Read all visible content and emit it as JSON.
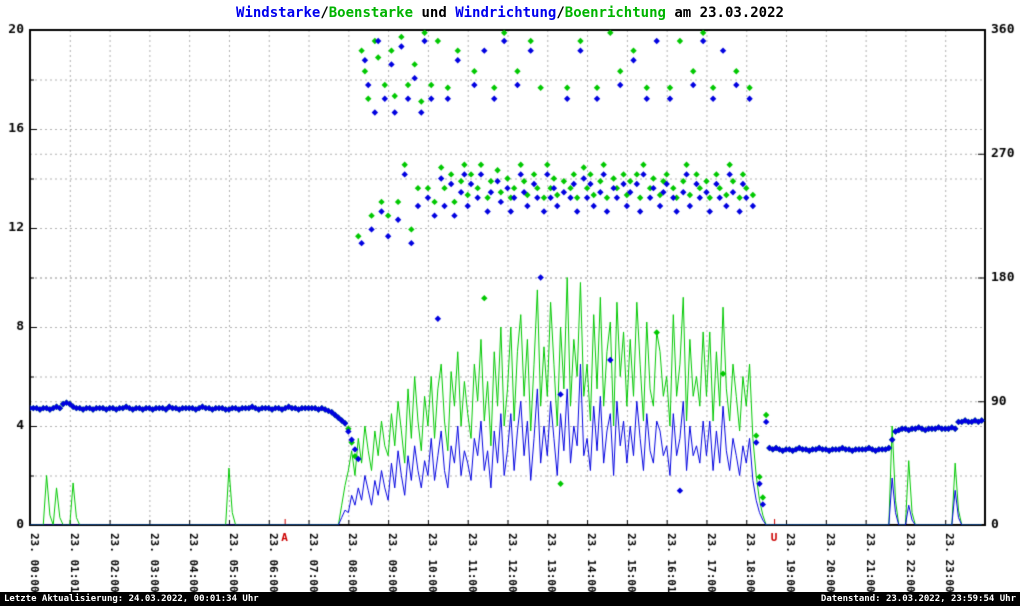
{
  "title_parts": [
    {
      "text": "Windstarke",
      "color": "#0000ee"
    },
    {
      "text": "/",
      "color": "#000000"
    },
    {
      "text": "Boenstarke",
      "color": "#00b400"
    },
    {
      "text": " und ",
      "color": "#000000"
    },
    {
      "text": "Windrichtung",
      "color": "#0000ee"
    },
    {
      "text": "/",
      "color": "#000000"
    },
    {
      "text": "Boenrichtung",
      "color": "#00b400"
    },
    {
      "text": " am 23.03.2022",
      "color": "#000000"
    }
  ],
  "footer": {
    "left": "Letzte Aktualisierung: 24.03.2022, 00:01:34 Uhr",
    "right": "Datenstand: 23.03.2022, 23:59:54 Uhr"
  },
  "colors": {
    "blue": "#0000e0",
    "green": "#00c800",
    "red": "#cc0000",
    "grid": "#b0b0b0",
    "axis": "#000000",
    "background": "#ffffff",
    "footer_bg": "#000000",
    "footer_text": "#ffffff"
  },
  "chart_data": {
    "type": "line",
    "title": "Windstarke/Boenstarke und Windrichtung/Boenrichtung am 23.03.2022",
    "xlabel": "",
    "ylabel": "",
    "grid": true,
    "x_axis": {
      "start_hour": 0,
      "total_hours": 24,
      "step_minutes": 5,
      "points": 288
    },
    "x_tick_labels": [
      "23. 00:00",
      "23. 01:01",
      "23. 02:00",
      "23. 03:00",
      "23. 04:00",
      "23. 05:00",
      "23. 06:00",
      "23. 07:00",
      "23. 08:00",
      "23. 09:00",
      "23. 10:00",
      "23. 11:00",
      "23. 12:00",
      "23. 13:00",
      "23. 14:00",
      "23. 15:00",
      "23. 16:01",
      "23. 17:00",
      "23. 18:00",
      "23. 19:00",
      "23. 20:00",
      "23. 21:00",
      "23. 22:00",
      "23. 23:00"
    ],
    "left_axis": {
      "range": [
        0,
        20
      ],
      "ticks": [
        0,
        4,
        8,
        12,
        16,
        20
      ],
      "minor_step": 2
    },
    "right_axis": {
      "range": [
        0,
        360
      ],
      "ticks": [
        0,
        90,
        180,
        270,
        360
      ],
      "grid_degrees": [
        90,
        180,
        270
      ]
    },
    "sun_markers": [
      {
        "label": "A",
        "hour": 6.4
      },
      {
        "label": "U",
        "hour": 18.7
      }
    ],
    "series": [
      {
        "name": "Windstarke",
        "render": "line",
        "axis": "left",
        "color": "#0000e0",
        "values": [
          0,
          0,
          0,
          0,
          0,
          0,
          0,
          0,
          0,
          0,
          0,
          0,
          0,
          0,
          0,
          0,
          0,
          0,
          0,
          0,
          0,
          0,
          0,
          0,
          0,
          0,
          0,
          0,
          0,
          0,
          0,
          0,
          0,
          0,
          0,
          0,
          0,
          0,
          0,
          0,
          0,
          0,
          0,
          0,
          0,
          0,
          0,
          0,
          0,
          0,
          0,
          0,
          0,
          0,
          0,
          0,
          0,
          0,
          0,
          0,
          0,
          0,
          0,
          0,
          0,
          0,
          0,
          0,
          0,
          0,
          0,
          0,
          0,
          0,
          0,
          0,
          0,
          0,
          0,
          0,
          0,
          0,
          0,
          0,
          0,
          0,
          0,
          0,
          0,
          0,
          0,
          0,
          0,
          0,
          0.3,
          0.6,
          0.5,
          1.2,
          0.8,
          1.5,
          1.0,
          2.0,
          1.4,
          0.8,
          1.8,
          1.2,
          2.2,
          1.5,
          1.0,
          2.5,
          1.5,
          3.0,
          2.0,
          1.2,
          2.8,
          1.8,
          3.2,
          2.2,
          1.5,
          2.6,
          2.0,
          3.5,
          1.8,
          2.8,
          3.8,
          2.2,
          1.5,
          3.2,
          2.5,
          4.0,
          2.0,
          3.0,
          2.5,
          1.8,
          3.5,
          2.8,
          4.2,
          2.2,
          3.0,
          1.5,
          3.8,
          2.5,
          4.5,
          2.0,
          3.0,
          4.5,
          2.2,
          3.8,
          5.0,
          2.8,
          4.2,
          1.8,
          3.5,
          5.5,
          2.5,
          4.0,
          2.8,
          5.0,
          3.5,
          2.0,
          4.5,
          3.0,
          5.5,
          2.5,
          4.0,
          3.2,
          6.5,
          2.8,
          3.5,
          2.2,
          4.8,
          3.0,
          5.2,
          2.5,
          3.8,
          4.5,
          2.0,
          5.0,
          3.2,
          4.2,
          2.5,
          4.0,
          2.8,
          5.0,
          3.5,
          2.2,
          4.5,
          3.0,
          2.5,
          4.2,
          3.8,
          2.8,
          3.2,
          2.0,
          4.5,
          2.8,
          3.5,
          5.0,
          2.2,
          4.0,
          2.8,
          3.2,
          2.5,
          4.2,
          2.8,
          4.2,
          2.2,
          3.8,
          2.5,
          4.8,
          3.0,
          2.2,
          3.5,
          2.8,
          2.0,
          3.2,
          2.5,
          3.5,
          1.8,
          1.0,
          0.5,
          0.2,
          0,
          0,
          0,
          0,
          0,
          0,
          0,
          0,
          0,
          0,
          0,
          0,
          0,
          0,
          0,
          0,
          0,
          0,
          0,
          0,
          0,
          0,
          0,
          0,
          0,
          0,
          0,
          0,
          0,
          0,
          0,
          0,
          0,
          0,
          0,
          0,
          0,
          0,
          1.9,
          0.5,
          0,
          0,
          0,
          0.8,
          0.2,
          0,
          0,
          0,
          0,
          0,
          0,
          0,
          0,
          0,
          0,
          0,
          0,
          1.4,
          0.3,
          0,
          0,
          0,
          0,
          0,
          0,
          0
        ]
      },
      {
        "name": "Boenstarke",
        "render": "line",
        "axis": "left",
        "color": "#00c800",
        "values": [
          0,
          0,
          0,
          0,
          0,
          2.0,
          0.4,
          0,
          1.5,
          0.3,
          0,
          0,
          0,
          1.7,
          0.3,
          0,
          0,
          0,
          0,
          0,
          0,
          0,
          0,
          0,
          0,
          0,
          0,
          0,
          0,
          0,
          0,
          0,
          0,
          0,
          0,
          0,
          0,
          0,
          0,
          0,
          0,
          0,
          0,
          0,
          0,
          0,
          0,
          0,
          0,
          0,
          0,
          0,
          0,
          0,
          0,
          0,
          0,
          0,
          0,
          0,
          2.3,
          0.5,
          0,
          0,
          0,
          0,
          0,
          0,
          0,
          0,
          0,
          0,
          0,
          0,
          0,
          0,
          0,
          0,
          0,
          0,
          0,
          0,
          0,
          0,
          0,
          0,
          0,
          0,
          0,
          0,
          0,
          0,
          0,
          0,
          0.8,
          1.6,
          2.2,
          3.0,
          2.0,
          3.5,
          2.5,
          4.0,
          3.0,
          2.2,
          3.8,
          2.8,
          4.2,
          3.2,
          2.8,
          4.5,
          3.2,
          5.0,
          3.8,
          2.5,
          5.5,
          3.5,
          6.0,
          4.2,
          3.0,
          5.2,
          4.0,
          6.0,
          3.5,
          5.5,
          6.5,
          4.2,
          3.0,
          6.2,
          4.8,
          7.0,
          4.0,
          5.8,
          4.5,
          3.5,
          6.5,
          5.0,
          7.5,
          4.2,
          5.8,
          3.2,
          7.0,
          4.8,
          8.0,
          4.0,
          5.5,
          8.0,
          4.2,
          7.0,
          8.5,
          5.2,
          7.5,
          3.8,
          6.5,
          9.5,
          4.8,
          7.2,
          5.2,
          9.0,
          6.5,
          4.0,
          8.0,
          5.5,
          10,
          4.8,
          7.5,
          6.0,
          9.8,
          5.2,
          6.5,
          4.2,
          8.5,
          5.5,
          9.2,
          4.8,
          7.0,
          8.2,
          4.0,
          9.0,
          6.0,
          7.8,
          4.8,
          7.5,
          5.2,
          9.0,
          6.5,
          4.2,
          8.2,
          5.5,
          4.8,
          7.8,
          7.0,
          5.2,
          6.0,
          4.0,
          8.5,
          5.2,
          6.5,
          9.2,
          4.2,
          7.5,
          5.2,
          6.0,
          4.8,
          7.8,
          5.2,
          7.8,
          4.2,
          7.0,
          4.8,
          8.8,
          5.5,
          4.2,
          6.5,
          5.2,
          3.8,
          6.0,
          4.8,
          6.5,
          3.5,
          2.0,
          1.0,
          0.4,
          0,
          0,
          0,
          0,
          0,
          0,
          0,
          0,
          0,
          0,
          0,
          0,
          0,
          0,
          0,
          0,
          0,
          0,
          0,
          0,
          0,
          0,
          0,
          0,
          0,
          0,
          0,
          0,
          0,
          0,
          0,
          0,
          0,
          0,
          0,
          0,
          0,
          0,
          4.0,
          1.0,
          0,
          0,
          0,
          2.6,
          0.5,
          0,
          0,
          0,
          0,
          0,
          0,
          0,
          0,
          0,
          0,
          0,
          0,
          2.5,
          0.6,
          0,
          0,
          0,
          0,
          0,
          0,
          0
        ]
      },
      {
        "name": "Windrichtung",
        "render": "scatter",
        "axis": "right",
        "color": "#0000e0",
        "values": [
          85,
          85,
          85,
          84,
          85,
          85,
          84,
          85,
          86,
          85,
          88,
          89,
          88,
          86,
          85,
          85,
          84,
          85,
          85,
          84,
          85,
          85,
          85,
          84,
          85,
          85,
          84,
          85,
          85,
          86,
          85,
          84,
          85,
          85,
          84,
          85,
          85,
          84,
          85,
          85,
          85,
          84,
          86,
          85,
          85,
          84,
          85,
          85,
          85,
          85,
          84,
          85,
          86,
          85,
          85,
          84,
          85,
          85,
          85,
          84,
          84,
          85,
          85,
          84,
          85,
          85,
          85,
          86,
          85,
          84,
          85,
          85,
          85,
          84,
          85,
          85,
          84,
          85,
          86,
          85,
          85,
          84,
          85,
          85,
          85,
          85,
          85,
          84,
          85,
          84,
          83,
          82,
          80,
          78,
          76,
          74,
          68,
          62,
          55,
          48,
          205,
          338,
          320,
          215,
          300,
          352,
          228,
          310,
          210,
          335,
          300,
          222,
          348,
          255,
          310,
          205,
          325,
          232,
          300,
          352,
          238,
          310,
          225,
          150,
          252,
          232,
          310,
          248,
          225,
          338,
          242,
          255,
          232,
          248,
          320,
          238,
          255,
          345,
          228,
          242,
          310,
          250,
          235,
          352,
          245,
          228,
          238,
          320,
          255,
          242,
          232,
          345,
          248,
          238,
          180,
          228,
          255,
          238,
          245,
          232,
          95,
          242,
          310,
          238,
          248,
          228,
          345,
          252,
          238,
          248,
          232,
          310,
          242,
          255,
          228,
          120,
          245,
          238,
          320,
          248,
          232,
          242,
          338,
          248,
          228,
          255,
          310,
          238,
          245,
          352,
          232,
          242,
          248,
          310,
          238,
          228,
          25,
          242,
          255,
          232,
          320,
          248,
          238,
          352,
          242,
          228,
          310,
          248,
          238,
          345,
          232,
          255,
          242,
          320,
          228,
          248,
          238,
          310,
          232,
          60,
          30,
          15,
          75,
          56,
          55,
          56,
          55,
          54,
          55,
          55,
          54,
          55,
          56,
          55,
          55,
          54,
          55,
          55,
          56,
          55,
          55,
          54,
          55,
          55,
          55,
          56,
          55,
          55,
          54,
          55,
          55,
          55,
          55,
          56,
          55,
          54,
          55,
          55,
          55,
          56,
          62,
          68,
          69,
          70,
          70,
          69,
          70,
          70,
          71,
          70,
          69,
          70,
          70,
          70,
          71,
          70,
          70,
          70,
          71,
          70,
          75,
          75,
          76,
          75,
          75,
          76,
          75,
          76
        ]
      },
      {
        "name": "Boenrichtung",
        "render": "scatter",
        "axis": "right",
        "color": "#00c800",
        "values": [
          85,
          85,
          85,
          84,
          85,
          85,
          84,
          85,
          86,
          85,
          88,
          89,
          88,
          86,
          85,
          85,
          84,
          85,
          85,
          84,
          85,
          85,
          85,
          84,
          85,
          85,
          84,
          85,
          85,
          86,
          85,
          84,
          85,
          85,
          84,
          85,
          85,
          84,
          85,
          85,
          85,
          84,
          86,
          85,
          85,
          84,
          85,
          85,
          85,
          85,
          84,
          85,
          86,
          85,
          85,
          84,
          85,
          85,
          85,
          84,
          84,
          85,
          85,
          84,
          85,
          85,
          85,
          86,
          85,
          84,
          85,
          85,
          85,
          84,
          85,
          85,
          84,
          85,
          86,
          85,
          85,
          84,
          85,
          85,
          85,
          85,
          85,
          84,
          85,
          84,
          83,
          82,
          80,
          78,
          76,
          74,
          70,
          60,
          50,
          210,
          345,
          330,
          310,
          225,
          352,
          340,
          235,
          320,
          225,
          345,
          312,
          235,
          355,
          262,
          320,
          215,
          335,
          245,
          308,
          358,
          245,
          320,
          235,
          352,
          260,
          245,
          318,
          255,
          235,
          345,
          250,
          262,
          240,
          255,
          330,
          245,
          262,
          165,
          238,
          250,
          318,
          258,
          242,
          358,
          252,
          238,
          245,
          330,
          262,
          250,
          240,
          352,
          255,
          245,
          318,
          238,
          262,
          245,
          252,
          240,
          30,
          250,
          318,
          245,
          255,
          238,
          352,
          260,
          245,
          255,
          240,
          318,
          250,
          262,
          238,
          358,
          252,
          245,
          330,
          255,
          240,
          250,
          345,
          255,
          238,
          262,
          318,
          245,
          252,
          140,
          240,
          250,
          255,
          318,
          245,
          238,
          352,
          250,
          262,
          240,
          330,
          255,
          245,
          358,
          250,
          238,
          318,
          255,
          245,
          110,
          240,
          262,
          250,
          330,
          238,
          255,
          245,
          318,
          240,
          65,
          35,
          20,
          80,
          56,
          55,
          56,
          55,
          54,
          55,
          55,
          54,
          55,
          56,
          55,
          55,
          54,
          55,
          55,
          56,
          55,
          55,
          54,
          55,
          55,
          55,
          56,
          55,
          55,
          54,
          55,
          55,
          55,
          55,
          56,
          55,
          54,
          55,
          55,
          55,
          56,
          62,
          68,
          69,
          70,
          70,
          69,
          70,
          70,
          71,
          70,
          69,
          70,
          70,
          70,
          71,
          70,
          70,
          70,
          71,
          70,
          75,
          75,
          76,
          75,
          75,
          76,
          75,
          76
        ]
      }
    ]
  }
}
